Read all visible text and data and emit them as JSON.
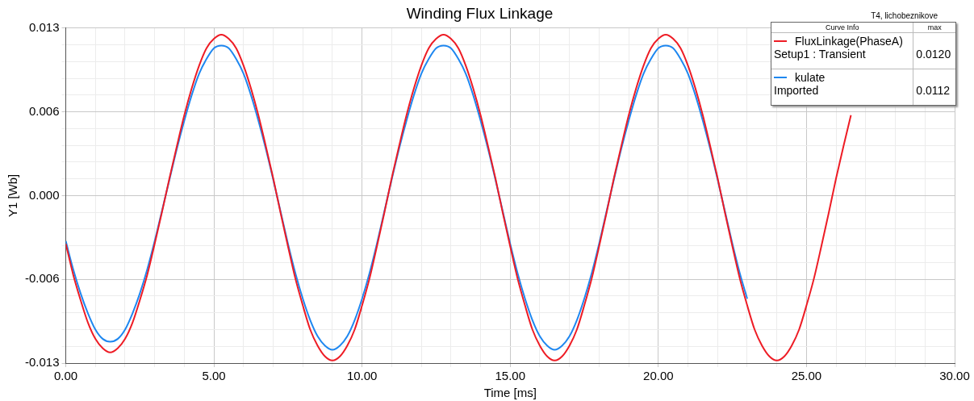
{
  "chart_data": {
    "type": "line",
    "title": "Winding Flux Linkage",
    "xlabel": "Time [ms]",
    "ylabel": "Y1 [Wb]",
    "legend_title": "Curve Info",
    "annotations": [
      "max",
      "Setup1 : Transient",
      "0.0120",
      "Imported",
      "0.0112",
      "T4, lichobeznikove"
    ],
    "xlim": [
      0,
      30
    ],
    "xticks": [
      {
        "value": 0,
        "label": "0.00"
      },
      {
        "value": 1,
        "label": null
      },
      {
        "value": 2,
        "label": null
      },
      {
        "value": 3,
        "label": null
      },
      {
        "value": 4,
        "label": null
      },
      {
        "value": 5,
        "label": "5.00"
      },
      {
        "value": 6,
        "label": null
      },
      {
        "value": 7,
        "label": null
      },
      {
        "value": 8,
        "label": null
      },
      {
        "value": 9,
        "label": null
      },
      {
        "value": 10,
        "label": "10.00"
      },
      {
        "value": 11,
        "label": null
      },
      {
        "value": 12,
        "label": null
      },
      {
        "value": 13,
        "label": null
      },
      {
        "value": 14,
        "label": null
      },
      {
        "value": 15,
        "label": "15.00"
      },
      {
        "value": 16,
        "label": null
      },
      {
        "value": 17,
        "label": null
      },
      {
        "value": 18,
        "label": null
      },
      {
        "value": 19,
        "label": null
      },
      {
        "value": 20,
        "label": "20.00"
      },
      {
        "value": 21,
        "label": null
      },
      {
        "value": 22,
        "label": null
      },
      {
        "value": 23,
        "label": null
      },
      {
        "value": 24,
        "label": null
      },
      {
        "value": 25,
        "label": "25.00"
      },
      {
        "value": 26,
        "label": null
      },
      {
        "value": 27,
        "label": null
      },
      {
        "value": 28,
        "label": null
      },
      {
        "value": 29,
        "label": null
      },
      {
        "value": 30,
        "label": "30.00"
      }
    ],
    "ylim": [
      -0.0125,
      0.0125
    ],
    "yticks": [
      {
        "value": -0.0125,
        "label": "-0.013"
      },
      {
        "value": -0.01125,
        "label": null
      },
      {
        "value": -0.01,
        "label": null
      },
      {
        "value": -0.00875,
        "label": null
      },
      {
        "value": -0.0075,
        "label": null
      },
      {
        "value": -0.00625,
        "label": "-0.006"
      },
      {
        "value": -0.005,
        "label": null
      },
      {
        "value": -0.00375,
        "label": null
      },
      {
        "value": -0.0025,
        "label": null
      },
      {
        "value": -0.00125,
        "label": null
      },
      {
        "value": 0,
        "label": "0.000"
      },
      {
        "value": 0.00125,
        "label": null
      },
      {
        "value": 0.0025,
        "label": null
      },
      {
        "value": 0.00375,
        "label": null
      },
      {
        "value": 0.005,
        "label": null
      },
      {
        "value": 0.00625,
        "label": "0.006"
      },
      {
        "value": 0.0075,
        "label": null
      },
      {
        "value": 0.00875,
        "label": null
      },
      {
        "value": 0.01,
        "label": null
      },
      {
        "value": 0.01125,
        "label": null
      },
      {
        "value": 0.0125,
        "label": "0.013"
      }
    ],
    "grid": true,
    "legend": "top right",
    "series": [
      {
        "name": "FluxLinkage(PhaseA)",
        "color": "#ee1c25",
        "x": [
          0,
          0.25,
          0.5,
          0.75,
          1,
          1.25,
          1.5,
          1.75,
          2,
          2.25,
          2.5,
          2.75,
          3,
          3.25,
          3.5,
          3.75,
          4,
          4.25,
          4.5,
          4.75,
          5,
          5.25,
          5.5,
          5.75,
          6,
          6.25,
          6.5,
          6.75,
          7,
          7.25,
          7.5,
          7.75,
          8,
          8.25,
          8.5,
          8.75,
          9,
          9.25,
          9.5,
          9.75,
          10,
          10.25,
          10.5,
          10.75,
          11,
          11.25,
          11.5,
          11.75,
          12,
          12.25,
          12.5,
          12.75,
          13,
          13.25,
          13.5,
          13.75,
          14,
          14.25,
          14.5,
          14.75,
          15,
          15.25,
          15.5,
          15.75,
          16,
          16.25,
          16.5,
          16.75,
          17,
          17.25,
          17.5,
          17.75,
          18,
          18.25,
          18.5,
          18.75,
          19,
          19.25,
          19.5,
          19.75,
          20,
          20.25,
          20.5,
          20.75,
          21,
          21.25,
          21.5,
          21.75,
          22,
          22.25,
          22.5,
          22.75,
          23,
          23.25,
          23.5,
          23.75,
          24,
          24.25,
          24.5,
          24.75,
          25,
          25.25,
          25.5,
          25.75,
          26,
          26.25,
          26.5
        ],
        "values": [
          -0.0036,
          -0.0059,
          -0.0078,
          -0.0095,
          -0.0107,
          -0.0114,
          -0.0117,
          -0.0114,
          -0.0107,
          -0.0095,
          -0.0078,
          -0.0059,
          -0.0036,
          -0.0012,
          0.0013,
          0.0037,
          0.006,
          0.008,
          0.0097,
          0.011,
          0.0117,
          0.012,
          0.0117,
          0.011,
          0.0097,
          0.008,
          0.006,
          0.0037,
          0.0013,
          -0.0013,
          -0.0038,
          -0.0062,
          -0.0082,
          -0.01,
          -0.0112,
          -0.012,
          -0.0123,
          -0.012,
          -0.0112,
          -0.01,
          -0.0082,
          -0.0062,
          -0.0038,
          -0.0013,
          0.0013,
          0.0037,
          0.006,
          0.008,
          0.0097,
          0.011,
          0.0117,
          0.012,
          0.0117,
          0.011,
          0.0097,
          0.008,
          0.006,
          0.0037,
          0.0013,
          -0.0013,
          -0.0038,
          -0.0062,
          -0.0082,
          -0.01,
          -0.0112,
          -0.012,
          -0.0123,
          -0.012,
          -0.0112,
          -0.01,
          -0.0082,
          -0.0062,
          -0.0038,
          -0.0013,
          0.0013,
          0.0037,
          0.006,
          0.008,
          0.0097,
          0.011,
          0.0117,
          0.012,
          0.0117,
          0.011,
          0.0097,
          0.008,
          0.006,
          0.0037,
          0.0013,
          -0.0013,
          -0.0038,
          -0.0062,
          -0.0082,
          -0.01,
          -0.0112,
          -0.012,
          -0.0123,
          -0.012,
          -0.0112,
          -0.01,
          -0.0082,
          -0.0062,
          -0.0038,
          -0.0013,
          0.0013,
          0.0037,
          0.006
        ]
      },
      {
        "name": "kulate",
        "color": "#1e87f0",
        "x": [
          0,
          0.25,
          0.5,
          0.75,
          1,
          1.25,
          1.5,
          1.75,
          2,
          2.25,
          2.5,
          2.75,
          3,
          3.25,
          3.5,
          3.75,
          4,
          4.25,
          4.5,
          4.75,
          5,
          5.25,
          5.5,
          5.75,
          6,
          6.25,
          6.5,
          6.75,
          7,
          7.25,
          7.5,
          7.75,
          8,
          8.25,
          8.5,
          8.75,
          9,
          9.25,
          9.5,
          9.75,
          10,
          10.25,
          10.5,
          10.75,
          11,
          11.25,
          11.5,
          11.75,
          12,
          12.25,
          12.5,
          12.75,
          13,
          13.25,
          13.5,
          13.75,
          14,
          14.25,
          14.5,
          14.75,
          15,
          15.25,
          15.5,
          15.75,
          16,
          16.25,
          16.5,
          16.75,
          17,
          17.25,
          17.5,
          17.75,
          18,
          18.25,
          18.5,
          18.75,
          19,
          19.25,
          19.5,
          19.75,
          20,
          20.25,
          20.5,
          20.75,
          21,
          21.25,
          21.5,
          21.75,
          22,
          22.25,
          22.5,
          22.75,
          23
        ],
        "values": [
          -0.0034,
          -0.0055,
          -0.0073,
          -0.0088,
          -0.01,
          -0.0107,
          -0.0109,
          -0.0107,
          -0.01,
          -0.0088,
          -0.0073,
          -0.0055,
          -0.0034,
          -0.0011,
          0.0012,
          0.0035,
          0.0056,
          0.0075,
          0.0091,
          0.0102,
          0.011,
          0.0112,
          0.011,
          0.0102,
          0.0091,
          0.0075,
          0.0056,
          0.0035,
          0.0012,
          -0.0012,
          -0.0036,
          -0.0058,
          -0.0077,
          -0.0093,
          -0.0105,
          -0.0112,
          -0.0115,
          -0.0112,
          -0.0105,
          -0.0093,
          -0.0077,
          -0.0058,
          -0.0036,
          -0.0012,
          0.0012,
          0.0035,
          0.0056,
          0.0075,
          0.0091,
          0.0102,
          0.011,
          0.0112,
          0.011,
          0.0102,
          0.0091,
          0.0075,
          0.0056,
          0.0035,
          0.0012,
          -0.0012,
          -0.0036,
          -0.0058,
          -0.0077,
          -0.0093,
          -0.0105,
          -0.0112,
          -0.0115,
          -0.0112,
          -0.0105,
          -0.0093,
          -0.0077,
          -0.0058,
          -0.0036,
          -0.0012,
          0.0012,
          0.0035,
          0.0056,
          0.0075,
          0.0091,
          0.0102,
          0.011,
          0.0112,
          0.011,
          0.0102,
          0.0091,
          0.0075,
          0.0056,
          0.0035,
          0.0012,
          -0.0012,
          -0.0036,
          -0.0058,
          -0.0077
        ]
      }
    ]
  }
}
